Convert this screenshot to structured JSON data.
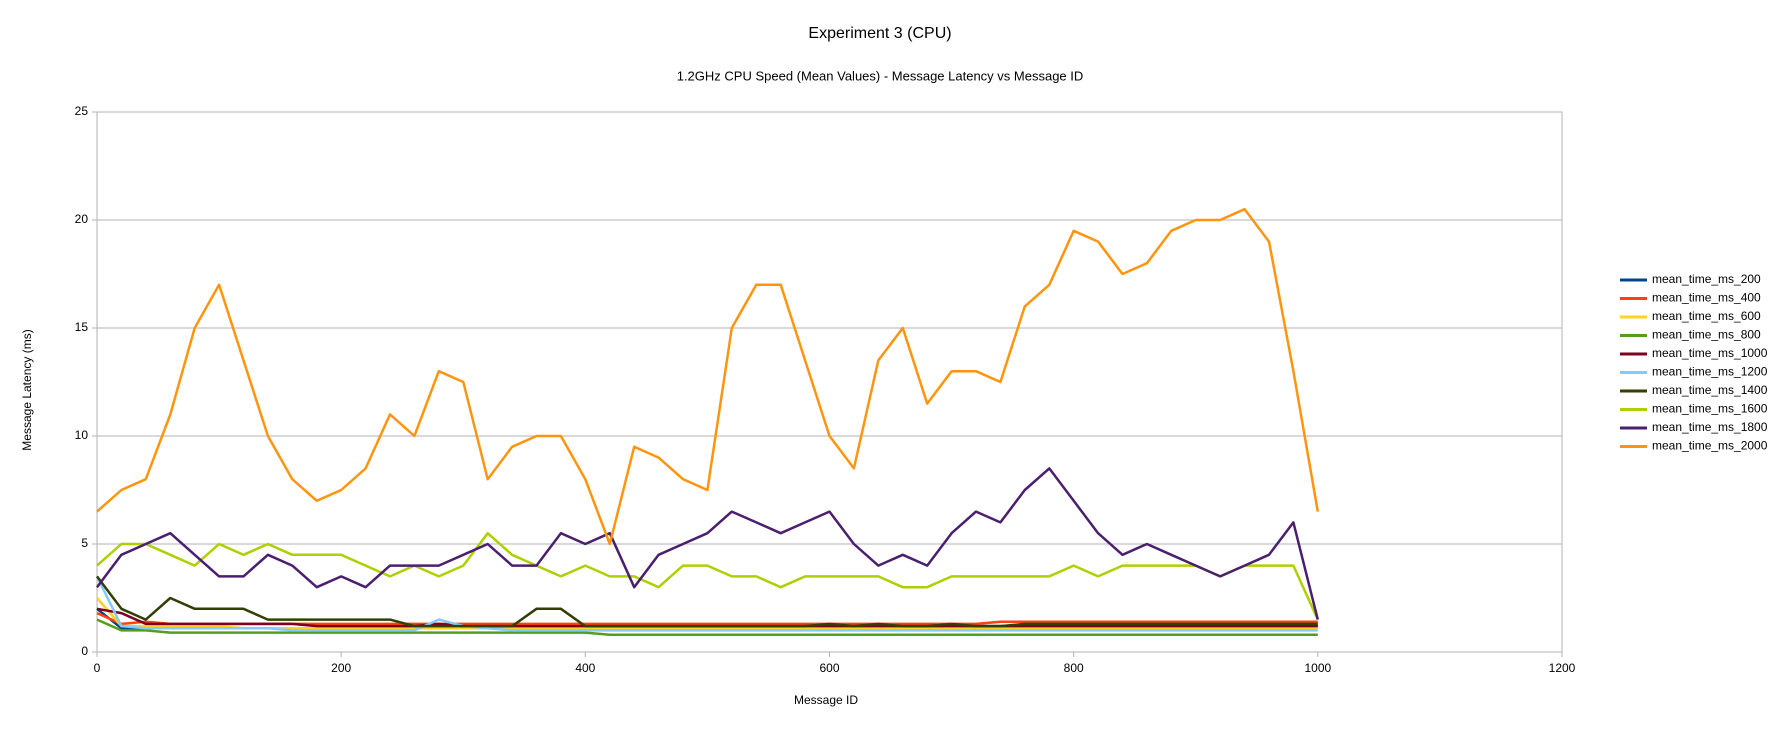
{
  "chart_data": {
    "type": "line",
    "title": "Experiment 3 (CPU)",
    "subtitle": "1.2GHz CPU Speed (Mean Values) - Message Latency vs Message ID",
    "x_label": "Message ID",
    "y_label": "Message Latency (ms)",
    "xlim": [
      0,
      1200
    ],
    "xticks": [
      0,
      200,
      400,
      600,
      800,
      1000,
      1200
    ],
    "ylim": [
      0,
      25
    ],
    "yticks": [
      0,
      5,
      10,
      15,
      20,
      25
    ],
    "grid": true,
    "legend": "right",
    "x": [
      0,
      20,
      40,
      60,
      80,
      100,
      120,
      140,
      160,
      180,
      200,
      220,
      240,
      260,
      280,
      300,
      320,
      340,
      360,
      380,
      400,
      420,
      440,
      460,
      480,
      500,
      520,
      540,
      560,
      580,
      600,
      620,
      640,
      660,
      680,
      700,
      720,
      740,
      760,
      780,
      800,
      820,
      840,
      860,
      880,
      900,
      920,
      940,
      960,
      980,
      1000
    ],
    "series": [
      {
        "name": "mean_time_ms_200",
        "color": "#004586",
        "values": [
          2,
          1.1,
          1.1,
          1.2,
          1.1,
          1.1,
          1.1,
          1.1,
          1.1,
          1.1,
          1.1,
          1.1,
          1.1,
          1.1,
          1.1,
          1.1,
          1.1,
          1.1,
          1.1,
          1.1,
          1.1,
          1.1,
          1.1,
          1.1,
          1.1,
          1.1,
          1.1,
          1.1,
          1.2,
          1.2,
          1.2,
          1.2,
          1.2,
          1.2,
          1.2,
          1.2,
          1.2,
          1.2,
          1.2,
          1.2,
          1.2,
          1.2,
          1.3,
          1.2,
          1.2,
          1.2,
          1.2,
          1.2,
          1.2,
          1.2,
          1.2
        ]
      },
      {
        "name": "mean_time_ms_400",
        "color": "#ff420e",
        "values": [
          1.8,
          1.3,
          1.4,
          1.3,
          1.3,
          1.3,
          1.3,
          1.3,
          1.3,
          1.3,
          1.3,
          1.3,
          1.3,
          1.3,
          1.3,
          1.3,
          1.3,
          1.3,
          1.3,
          1.3,
          1.3,
          1.3,
          1.3,
          1.3,
          1.3,
          1.3,
          1.3,
          1.3,
          1.3,
          1.3,
          1.3,
          1.3,
          1.3,
          1.3,
          1.3,
          1.3,
          1.3,
          1.4,
          1.4,
          1.4,
          1.4,
          1.4,
          1.4,
          1.4,
          1.4,
          1.4,
          1.4,
          1.4,
          1.4,
          1.4,
          1.4
        ]
      },
      {
        "name": "mean_time_ms_600",
        "color": "#ffd320",
        "values": [
          2.5,
          1.2,
          1.2,
          1.2,
          1.2,
          1.2,
          1.1,
          1.1,
          1.1,
          1.1,
          1.1,
          1.1,
          1.1,
          1.1,
          1.1,
          1.1,
          1.1,
          1.1,
          1.1,
          1.1,
          1.1,
          1.1,
          1.1,
          1.1,
          1.1,
          1.1,
          1.1,
          1.1,
          1.1,
          1.1,
          1.1,
          1.1,
          1.1,
          1.1,
          1.1,
          1.1,
          1.1,
          1.1,
          1.1,
          1.1,
          1.1,
          1.1,
          1.1,
          1.1,
          1.1,
          1.1,
          1.1,
          1.1,
          1.1,
          1.1,
          1.1
        ]
      },
      {
        "name": "mean_time_ms_800",
        "color": "#579d1c",
        "values": [
          1.5,
          1,
          1,
          0.9,
          0.9,
          0.9,
          0.9,
          0.9,
          0.9,
          0.9,
          0.9,
          0.9,
          0.9,
          0.9,
          0.9,
          0.9,
          0.9,
          0.9,
          0.9,
          0.9,
          0.9,
          0.8,
          0.8,
          0.8,
          0.8,
          0.8,
          0.8,
          0.8,
          0.8,
          0.8,
          0.8,
          0.8,
          0.8,
          0.8,
          0.8,
          0.8,
          0.8,
          0.8,
          0.8,
          0.8,
          0.8,
          0.8,
          0.8,
          0.8,
          0.8,
          0.8,
          0.8,
          0.8,
          0.8,
          0.8,
          0.8
        ]
      },
      {
        "name": "mean_time_ms_1000",
        "color": "#7e0021",
        "values": [
          2,
          1.8,
          1.3,
          1.3,
          1.3,
          1.3,
          1.3,
          1.3,
          1.3,
          1.2,
          1.2,
          1.2,
          1.2,
          1.2,
          1.3,
          1.2,
          1.2,
          1.2,
          1.2,
          1.2,
          1.2,
          1.2,
          1.2,
          1.2,
          1.2,
          1.2,
          1.2,
          1.2,
          1.2,
          1.2,
          1.2,
          1.2,
          1.2,
          1.2,
          1.2,
          1.2,
          1.2,
          1.2,
          1.2,
          1.2,
          1.2,
          1.2,
          1.2,
          1.2,
          1.2,
          1.2,
          1.2,
          1.2,
          1.2,
          1.2,
          1.2
        ]
      },
      {
        "name": "mean_time_ms_1200",
        "color": "#83caff",
        "values": [
          3.5,
          1.2,
          1.1,
          1.1,
          1.1,
          1.1,
          1.1,
          1.1,
          1,
          1,
          1,
          1,
          1,
          1,
          1.5,
          1.2,
          1.1,
          1,
          1,
          1,
          1,
          1,
          1,
          1,
          1,
          1,
          1,
          1,
          1,
          1,
          1,
          1,
          1,
          1,
          1,
          1,
          1,
          1,
          1,
          1,
          1,
          1,
          1,
          1,
          1,
          1,
          1,
          1,
          1,
          1,
          1
        ]
      },
      {
        "name": "mean_time_ms_1400",
        "color": "#314004",
        "values": [
          3.5,
          2,
          1.5,
          2.5,
          2,
          2,
          2,
          1.5,
          1.5,
          1.5,
          1.5,
          1.5,
          1.5,
          1.2,
          1.2,
          1.2,
          1.2,
          1.2,
          2,
          2,
          1.2,
          1.2,
          1.2,
          1.2,
          1.2,
          1.2,
          1.2,
          1.2,
          1.2,
          1.2,
          1.3,
          1.2,
          1.3,
          1.2,
          1.2,
          1.3,
          1.2,
          1.2,
          1.3,
          1.3,
          1.3,
          1.3,
          1.3,
          1.3,
          1.3,
          1.3,
          1.3,
          1.3,
          1.3,
          1.3,
          1.3
        ]
      },
      {
        "name": "mean_time_ms_1600",
        "color": "#aecf00",
        "values": [
          4,
          5,
          5,
          4.5,
          4,
          5,
          4.5,
          5,
          4.5,
          4.5,
          4.5,
          4,
          3.5,
          4,
          3.5,
          4,
          5.5,
          4.5,
          4,
          3.5,
          4,
          3.5,
          3.5,
          3,
          4,
          4,
          3.5,
          3.5,
          3,
          3.5,
          3.5,
          3.5,
          3.5,
          3,
          3,
          3.5,
          3.5,
          3.5,
          3.5,
          3.5,
          4,
          3.5,
          4,
          4,
          4,
          4,
          3.5,
          4,
          4,
          4,
          1.5
        ]
      },
      {
        "name": "mean_time_ms_1800",
        "color": "#4b1f6f",
        "values": [
          3,
          4.5,
          5,
          5.5,
          4.5,
          3.5,
          3.5,
          4.5,
          4,
          3,
          3.5,
          3,
          4,
          4,
          4,
          4.5,
          5,
          4,
          4,
          5.5,
          5,
          5.5,
          3,
          4.5,
          5,
          5.5,
          6.5,
          6,
          5.5,
          6,
          6.5,
          5,
          4,
          4.5,
          4,
          5.5,
          6.5,
          6,
          7.5,
          8.5,
          7,
          5.5,
          4.5,
          5,
          4.5,
          4,
          3.5,
          4,
          4.5,
          6,
          1.5
        ]
      },
      {
        "name": "mean_time_ms_2000",
        "color": "#ff950e",
        "values": [
          6.5,
          7.5,
          8,
          11,
          15,
          17,
          13.5,
          10,
          8,
          7,
          7.5,
          8.5,
          11,
          10,
          13,
          12.5,
          8,
          9.5,
          10,
          10,
          8,
          5,
          9.5,
          9,
          8,
          7.5,
          15,
          17,
          17,
          13.5,
          10,
          8.5,
          13.5,
          15,
          11.5,
          13,
          13,
          12.5,
          16,
          17,
          19.5,
          19,
          17.5,
          18,
          19.5,
          20,
          20,
          20.5,
          19,
          13,
          6.5
        ]
      }
    ]
  }
}
